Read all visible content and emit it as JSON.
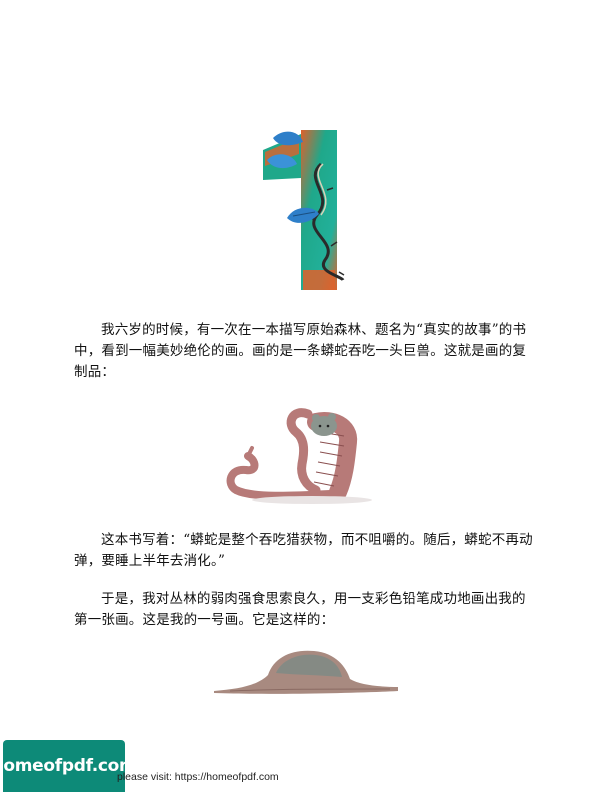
{
  "paragraphs": [
    "我六岁的时候，有一次在一本描写原始森林、题名为“真实的故事”的书中，看到一幅美妙绝伦的画。画的是一条蟒蛇吞吃一头巨兽。这就是画的复制品：",
    "这本书写着：“蟒蛇是整个吞吃猎获物，而不咀嚼的。随后，蟒蛇不再动弹，要睡上半年去消化。”",
    "于是，我对丛林的弱肉强食思索良久，用一支彩色铅笔成功地画出我的第一张画。这是我的一号画。它是这样的："
  ],
  "footer": {
    "logo_text": "homeofpdf.com",
    "note": "please visit: https://homeofpdf.com"
  },
  "colors": {
    "logo_bg": "#0d8a78",
    "numeral_green": "#1fa88a",
    "numeral_orange": "#e0602a",
    "leaf_blue": "#2e7fc9",
    "snake": "#b77a78"
  },
  "icons": {
    "chapter_numeral": "vine-wrapped-numeral-one-illustration",
    "illustration_1": "boa-eating-beast-illustration",
    "illustration_2": "boa-digesting-elephant-hat-illustration"
  }
}
